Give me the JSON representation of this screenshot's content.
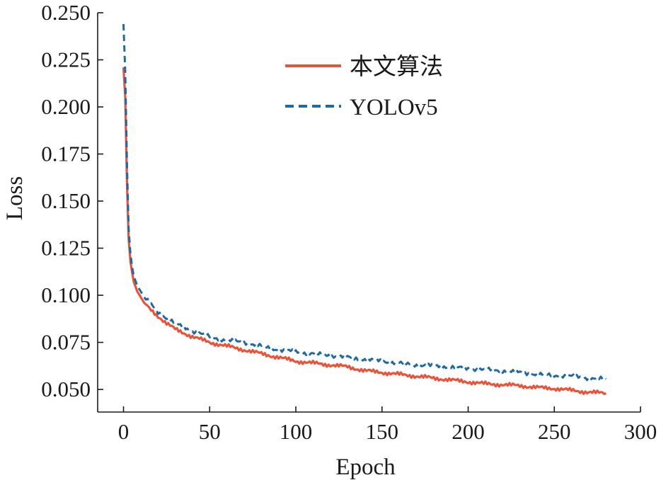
{
  "chart_data": {
    "type": "line",
    "xlabel": "Epoch",
    "ylabel": "Loss",
    "xlim": [
      -15,
      300
    ],
    "ylim": [
      0.038,
      0.25
    ],
    "xticks": [
      "0",
      "50",
      "100",
      "150",
      "200",
      "250",
      "300"
    ],
    "xtick_values": [
      0,
      50,
      100,
      150,
      200,
      250,
      300
    ],
    "yticks": [
      "0.050",
      "0.075",
      "0.100",
      "0.125",
      "0.150",
      "0.175",
      "0.200",
      "0.225",
      "0.250"
    ],
    "ytick_values": [
      0.05,
      0.075,
      0.1,
      0.125,
      0.15,
      0.175,
      0.2,
      0.225,
      0.25
    ],
    "legend_position": "top-center",
    "grid": false,
    "series": [
      {
        "name": "本文算法",
        "color": "#e8533a",
        "style": "solid",
        "x": [
          0,
          1,
          2,
          3,
          4,
          5,
          6,
          8,
          10,
          12,
          15,
          20,
          25,
          30,
          40,
          50,
          60,
          70,
          80,
          90,
          100,
          110,
          120,
          130,
          140,
          150,
          160,
          170,
          180,
          190,
          200,
          210,
          220,
          230,
          240,
          250,
          260,
          270,
          280
        ],
        "y": [
          0.221,
          0.205,
          0.16,
          0.13,
          0.118,
          0.112,
          0.107,
          0.102,
          0.099,
          0.096,
          0.093,
          0.089,
          0.085,
          0.082,
          0.078,
          0.075,
          0.073,
          0.071,
          0.069,
          0.067,
          0.065,
          0.064,
          0.063,
          0.062,
          0.06,
          0.059,
          0.058,
          0.057,
          0.056,
          0.055,
          0.054,
          0.053,
          0.0525,
          0.052,
          0.051,
          0.0505,
          0.0495,
          0.0485,
          0.048
        ]
      },
      {
        "name": "YOLOv5",
        "color": "#1f6aa5",
        "style": "dashed",
        "x": [
          0,
          1,
          2,
          3,
          4,
          5,
          6,
          8,
          10,
          12,
          15,
          20,
          25,
          30,
          40,
          50,
          60,
          70,
          80,
          90,
          100,
          110,
          120,
          130,
          140,
          150,
          160,
          170,
          180,
          190,
          200,
          210,
          220,
          230,
          240,
          250,
          260,
          270,
          280
        ],
        "y": [
          0.244,
          0.218,
          0.17,
          0.135,
          0.122,
          0.115,
          0.11,
          0.105,
          0.102,
          0.099,
          0.096,
          0.091,
          0.088,
          0.085,
          0.081,
          0.078,
          0.076,
          0.075,
          0.073,
          0.071,
          0.07,
          0.069,
          0.068,
          0.067,
          0.066,
          0.065,
          0.064,
          0.063,
          0.0625,
          0.062,
          0.061,
          0.0605,
          0.06,
          0.059,
          0.058,
          0.0575,
          0.057,
          0.056,
          0.0555
        ]
      }
    ]
  }
}
